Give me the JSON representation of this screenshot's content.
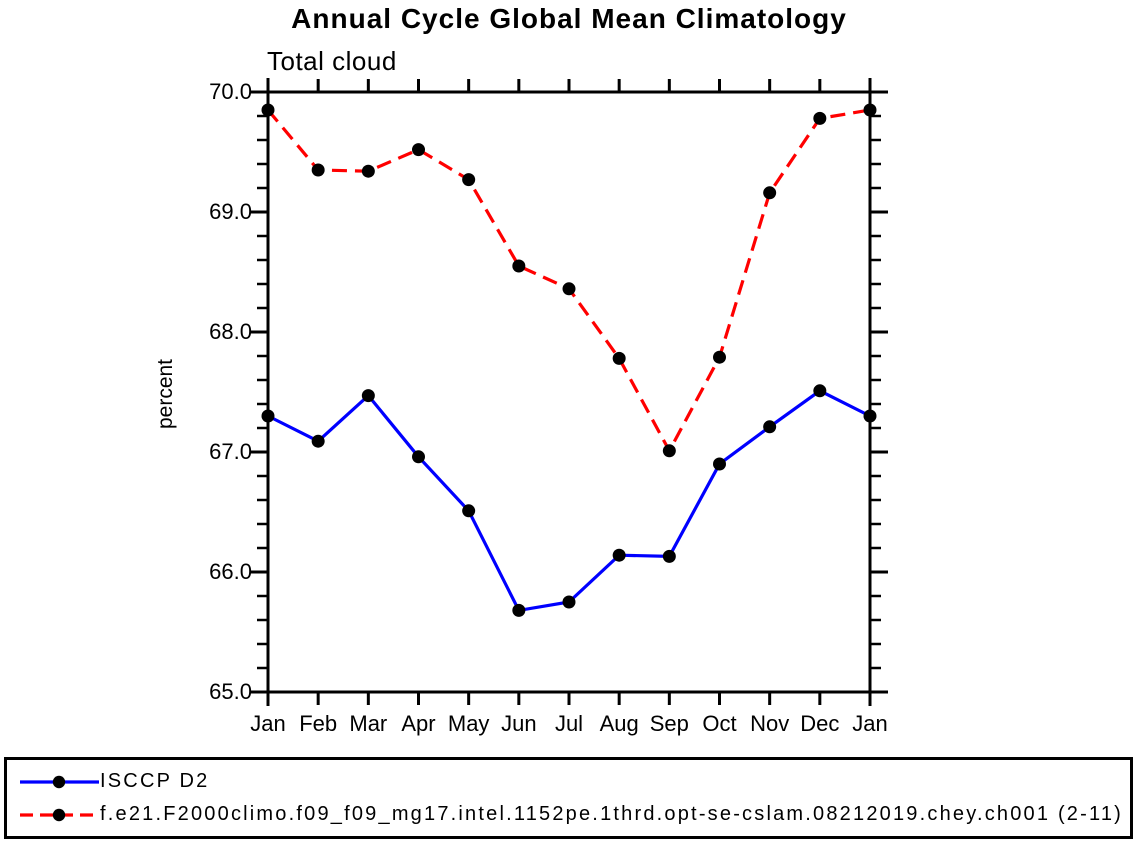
{
  "page": {
    "background": "#ffffff",
    "axis_color": "#000000"
  },
  "chart_data": {
    "type": "line",
    "title": "Annual Cycle Global Mean Climatology",
    "subtitle": "Total cloud",
    "ylabel": "percent",
    "xlabel": "",
    "categories": [
      "Jan",
      "Feb",
      "Mar",
      "Apr",
      "May",
      "Jun",
      "Jul",
      "Aug",
      "Sep",
      "Oct",
      "Nov",
      "Dec",
      "Jan"
    ],
    "ylim": [
      65.0,
      70.0
    ],
    "ytick_labels": [
      "65.0",
      "66.0",
      "67.0",
      "68.0",
      "69.0",
      "70.0"
    ],
    "minor_ticks_per_major": 4,
    "grid": false,
    "tick_style": "outward-all-sides",
    "legend_position": "bottom-box",
    "series": [
      {
        "name": "ISCCP D2",
        "color": "#0000ff",
        "line_style": "solid",
        "marker": "circle",
        "marker_color": "#000000",
        "values": [
          67.3,
          67.09,
          67.47,
          66.96,
          66.51,
          65.68,
          65.75,
          66.14,
          66.13,
          66.9,
          67.21,
          67.51,
          67.3
        ]
      },
      {
        "name": "f.e21.F2000climo.f09_f09_mg17.intel.1152pe.1thrd.opt-se-cslam.08212019.chey.ch001 (2-11)",
        "color": "#ff0000",
        "line_style": "dashed",
        "marker": "circle",
        "marker_color": "#000000",
        "values": [
          69.85,
          69.35,
          69.34,
          69.52,
          69.27,
          68.55,
          68.36,
          67.78,
          67.01,
          67.79,
          69.16,
          69.78,
          69.85
        ]
      }
    ]
  }
}
